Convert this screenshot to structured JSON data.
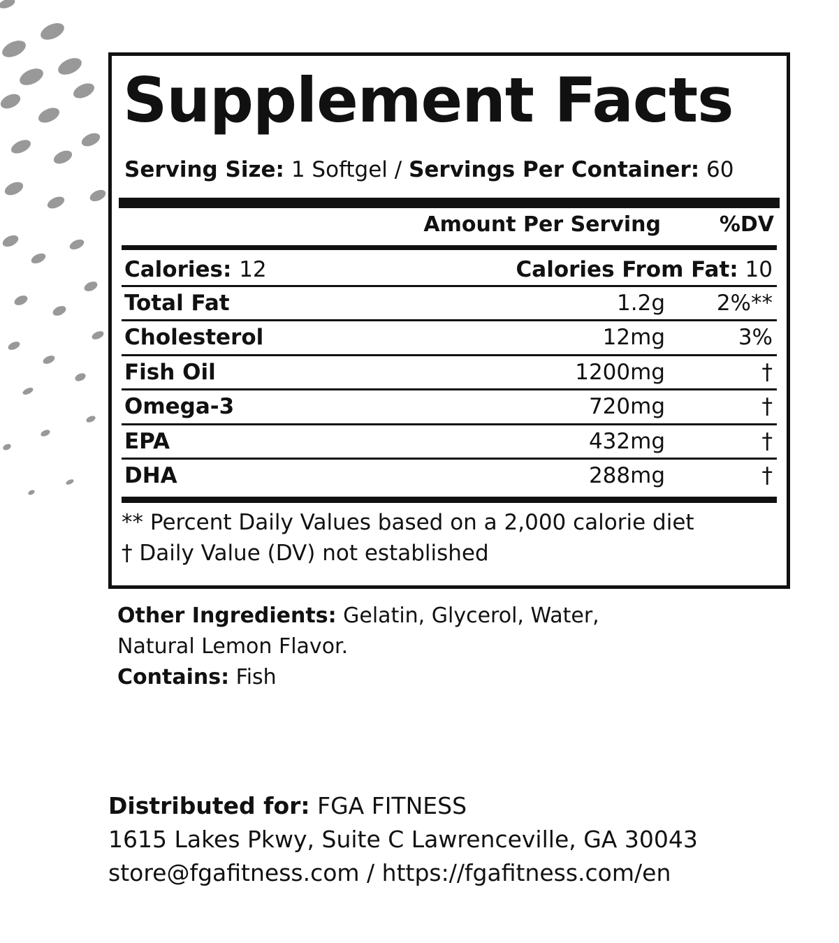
{
  "header": {
    "title": "Supplement Facts",
    "serving_size_label": "Serving Size:",
    "serving_size": "1 Softgel /",
    "servings_label": "Servings Per Container:",
    "servings": "60"
  },
  "table": {
    "columns": [
      "Amount Per Serving",
      "%DV"
    ],
    "calories_label": "Calories:",
    "calories": "12",
    "calories_fat_label": "Calories From Fat:",
    "calories_fat": "10",
    "rows": [
      [
        "Total Fat",
        "1.2g",
        "2%**"
      ],
      [
        "Cholesterol",
        "12mg",
        "3%"
      ],
      [
        "Fish Oil",
        "1200mg",
        "†"
      ],
      [
        "Omega-3",
        "720mg",
        "†"
      ],
      [
        "EPA",
        "432mg",
        "†"
      ],
      [
        "DHA",
        "288mg",
        "†"
      ]
    ]
  },
  "footnotes": [
    "** Percent Daily Values based on a 2,000 calorie diet",
    "† Daily Value (DV) not established"
  ],
  "ingredients": {
    "label": "Other Ingredients:",
    "text": "Gelatin, Glycerol, Water,",
    "text2": "Natural Lemon Flavor.",
    "contains_label": "Contains:",
    "contains": "Fish"
  },
  "distributor": {
    "label": "Distributed for:",
    "name": "FGA FITNESS",
    "address": "1615 Lakes Pkwy, Suite C Lawrenceville, GA 30043",
    "contact": "store@fgafitness.com / https://fgafitness.com/en"
  }
}
